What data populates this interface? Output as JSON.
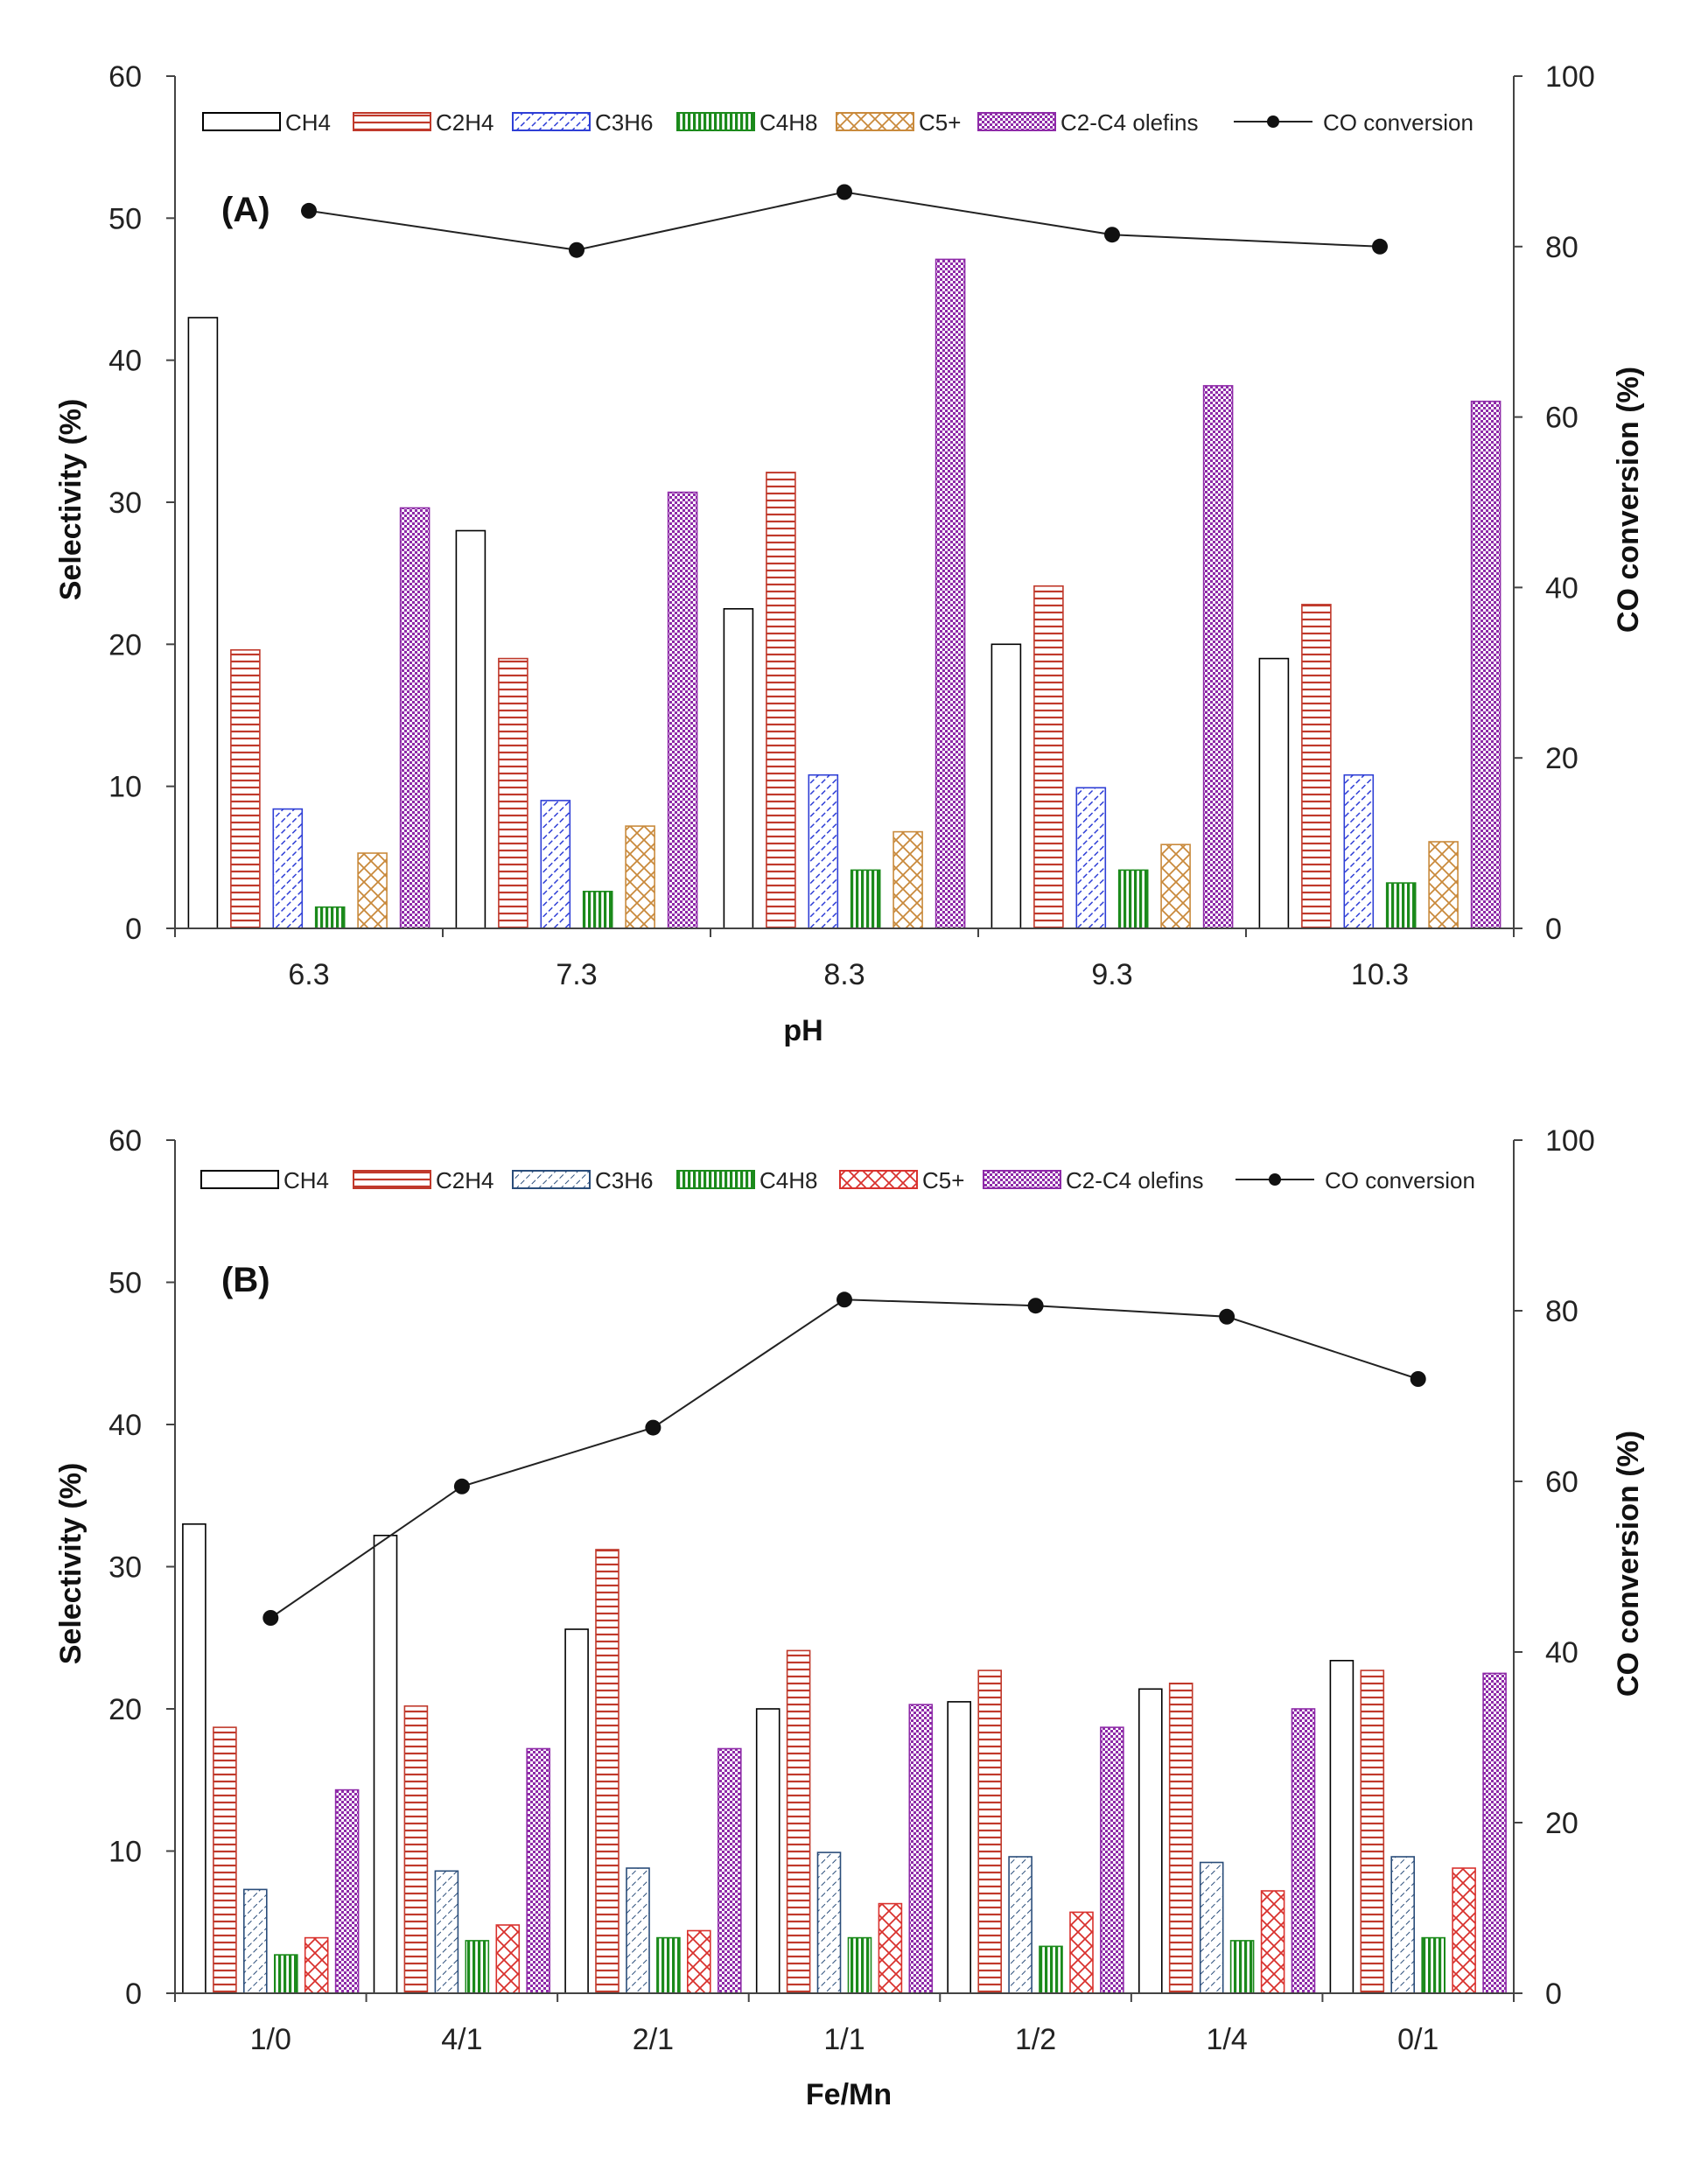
{
  "chart_data": [
    {
      "type": "bar",
      "panel_label": "(A)",
      "title": "",
      "xlabel": "pH",
      "ylabel": "Selectivity (%)",
      "y2label": "CO conversion (%)",
      "categories": [
        "6.3",
        "7.3",
        "8.3",
        "9.3",
        "10.3"
      ],
      "ylim": [
        0,
        60
      ],
      "yticks": [
        0,
        10,
        20,
        30,
        40,
        50,
        60
      ],
      "y2lim": [
        0,
        100
      ],
      "y2ticks": [
        0,
        20,
        40,
        60,
        80,
        100
      ],
      "legend_position": "top",
      "series": [
        {
          "name": "CH4",
          "values": [
            43.0,
            28.0,
            22.5,
            20.0,
            19.0
          ]
        },
        {
          "name": "C2H4",
          "values": [
            19.6,
            19.0,
            32.1,
            24.1,
            22.8
          ]
        },
        {
          "name": "C3H6",
          "values": [
            8.4,
            9.0,
            10.8,
            9.9,
            10.8
          ]
        },
        {
          "name": "C4H8",
          "values": [
            1.5,
            2.6,
            4.1,
            4.1,
            3.2
          ]
        },
        {
          "name": "C5+",
          "values": [
            5.3,
            7.2,
            6.8,
            5.9,
            6.1
          ]
        },
        {
          "name": "C2-C4 olefins",
          "values": [
            29.6,
            30.7,
            47.1,
            38.2,
            37.1
          ]
        }
      ],
      "line_series": {
        "name": "CO conversion",
        "axis": "right",
        "values": [
          84.2,
          79.6,
          86.4,
          81.4,
          80.0
        ]
      }
    },
    {
      "type": "bar",
      "panel_label": "(B)",
      "title": "",
      "xlabel": "Fe/Mn",
      "ylabel": "Selectivity (%)",
      "y2label": "CO conversion (%)",
      "categories": [
        "1/0",
        "4/1",
        "2/1",
        "1/1",
        "1/2",
        "1/4",
        "0/1"
      ],
      "ylim": [
        0,
        60
      ],
      "yticks": [
        0,
        10,
        20,
        30,
        40,
        50,
        60
      ],
      "y2lim": [
        0,
        100
      ],
      "y2ticks": [
        0,
        20,
        40,
        60,
        80,
        100
      ],
      "legend_position": "top",
      "series": [
        {
          "name": "CH4",
          "values": [
            33.0,
            32.2,
            25.6,
            20.0,
            20.5,
            21.4,
            23.4
          ]
        },
        {
          "name": "C2H4",
          "values": [
            18.7,
            20.2,
            31.2,
            24.1,
            22.7,
            21.8,
            22.7
          ]
        },
        {
          "name": "C3H6",
          "values": [
            7.3,
            8.6,
            8.8,
            9.9,
            9.6,
            9.2,
            9.6
          ]
        },
        {
          "name": "C4H8",
          "values": [
            2.7,
            3.7,
            3.9,
            3.9,
            3.3,
            3.7,
            3.9
          ]
        },
        {
          "name": "C5+",
          "values": [
            3.9,
            4.8,
            4.4,
            6.3,
            5.7,
            7.2,
            8.8
          ]
        },
        {
          "name": "C2-C4 olefins",
          "values": [
            14.3,
            17.2,
            17.2,
            20.3,
            18.7,
            20.0,
            22.5
          ]
        }
      ],
      "line_series": {
        "name": "CO conversion",
        "axis": "right",
        "values": [
          44.0,
          59.4,
          66.3,
          81.3,
          80.6,
          79.3,
          72.0
        ]
      }
    }
  ],
  "styles": {
    "series_colors": {
      "CH4": "#000000",
      "C2H4": "#c0392b",
      "C3H6": "#2f3fd6",
      "C4H8": "#1b8a1b",
      "C5+": [
        "#c98a3c",
        "#d9322e"
      ],
      "C2-C4 olefins": "#8e2aa8",
      "CO conversion": "#222222"
    },
    "axis_color": "#444444"
  }
}
